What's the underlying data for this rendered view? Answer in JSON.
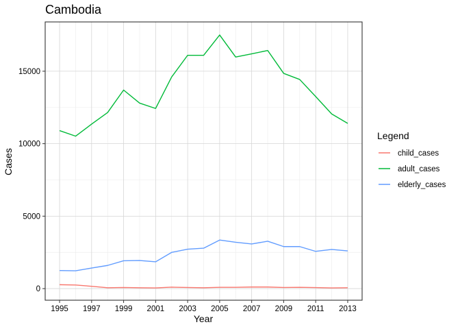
{
  "chart_data": {
    "type": "line",
    "title": "Cambodia",
    "xlabel": "Year",
    "ylabel": "Cases",
    "xlim": [
      1994.1,
      2013.9
    ],
    "ylim": [
      -800,
      18400
    ],
    "x_ticks": [
      1995,
      1997,
      1999,
      2001,
      2003,
      2005,
      2007,
      2009,
      2011,
      2013
    ],
    "y_ticks": [
      0,
      5000,
      10000,
      15000
    ],
    "grid": true,
    "legend_title": "Legend",
    "legend_position": "right",
    "x": [
      1995,
      1996,
      1997,
      1998,
      1999,
      2000,
      2001,
      2002,
      2003,
      2004,
      2005,
      2006,
      2007,
      2008,
      2009,
      2010,
      2011,
      2012,
      2013
    ],
    "series": [
      {
        "name": "child_cases",
        "color": "#F8766D",
        "values": [
          270,
          250,
          160,
          60,
          80,
          60,
          50,
          100,
          80,
          60,
          90,
          90,
          110,
          110,
          80,
          90,
          70,
          50,
          60
        ]
      },
      {
        "name": "adult_cases",
        "color": "#00BA38",
        "values": [
          10900,
          10520,
          11350,
          12150,
          13700,
          12800,
          12430,
          14600,
          16100,
          16100,
          17500,
          15980,
          16200,
          16430,
          14850,
          14430,
          13250,
          12050,
          11400
        ]
      },
      {
        "name": "elderly_cases",
        "color": "#619CFF",
        "values": [
          1250,
          1230,
          1420,
          1600,
          1920,
          1940,
          1850,
          2500,
          2720,
          2790,
          3350,
          3200,
          3080,
          3270,
          2900,
          2900,
          2570,
          2700,
          2600
        ]
      }
    ]
  }
}
